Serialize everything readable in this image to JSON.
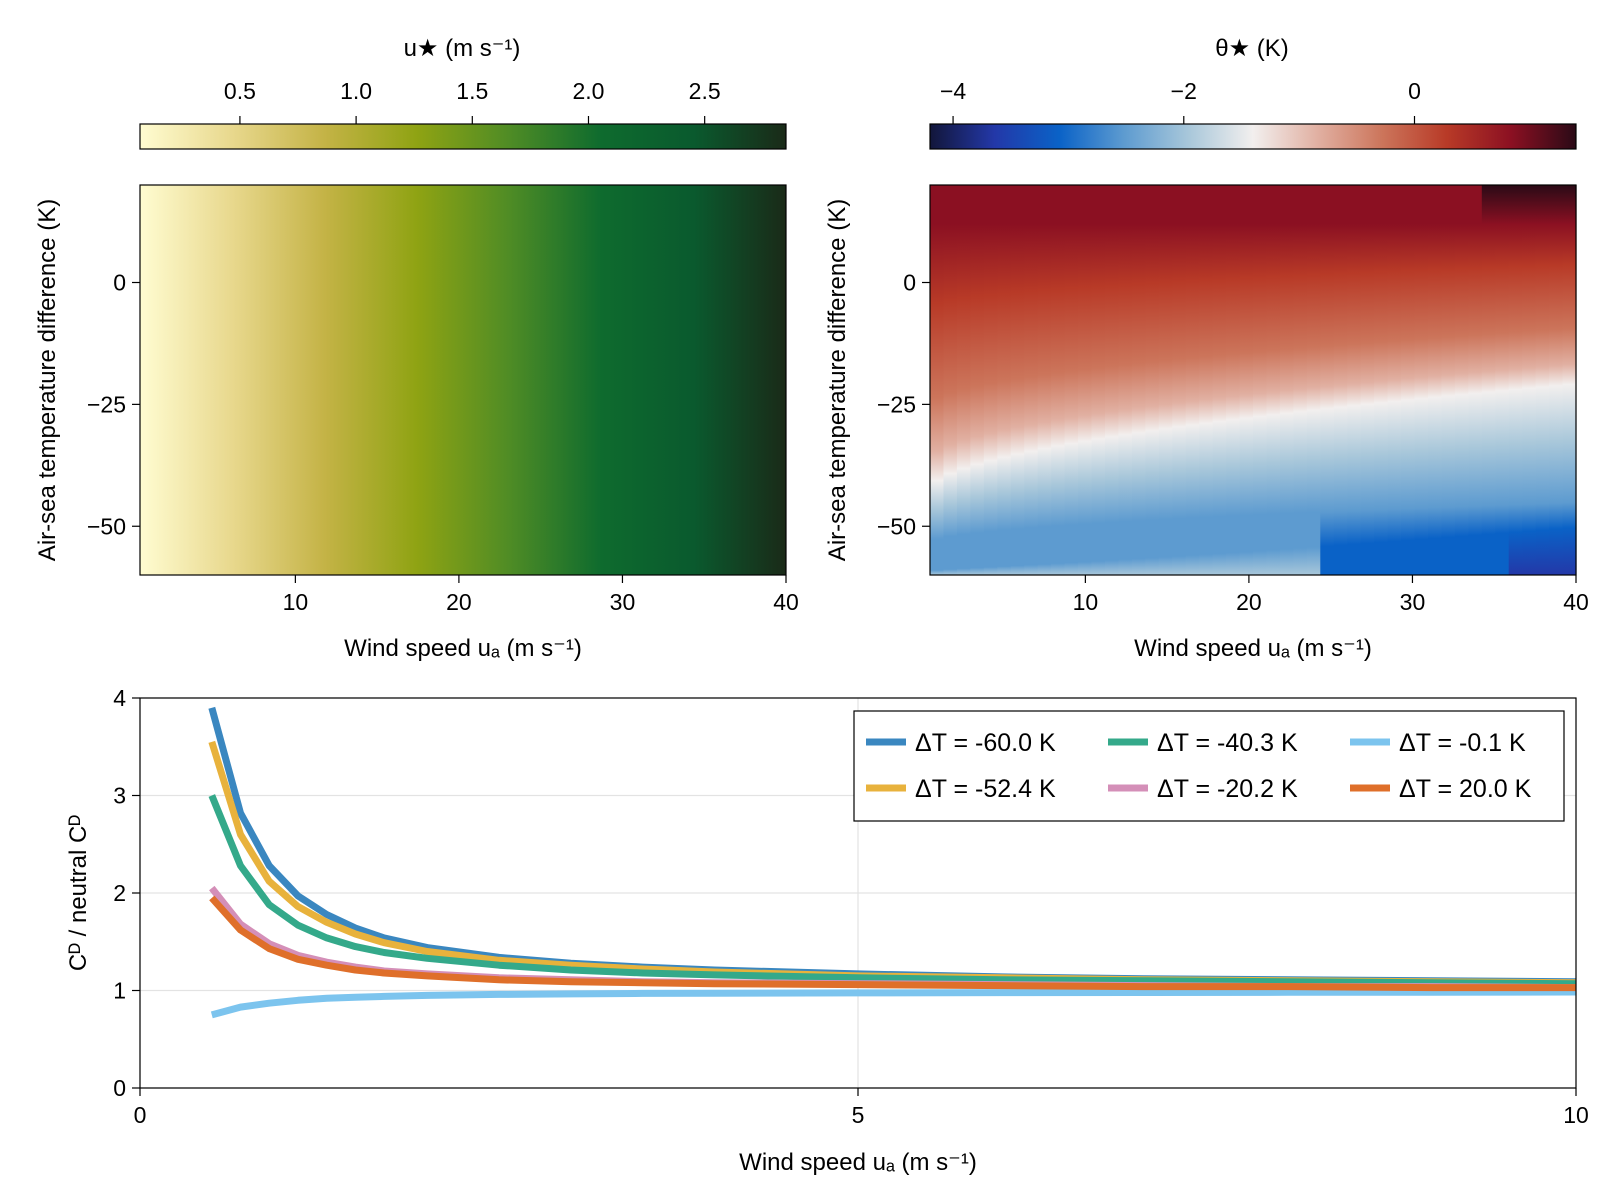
{
  "chart_data": [
    {
      "type": "heatmap",
      "title": "",
      "colorbar_label": "u★ (m s⁻¹)",
      "colorbar_ticks": [
        "0.5",
        "1.0",
        "1.5",
        "2.0",
        "2.5"
      ],
      "colorbar_range": [
        0.07,
        2.85
      ],
      "colors": [
        "#fffcd1",
        "#e8d88d",
        "#c4b346",
        "#8fa313",
        "#4f8c25",
        "#0e6b2e",
        "#0a5a2e",
        "#1a2a18"
      ],
      "xlabel": "Wind speed uₐ (m s⁻¹)",
      "ylabel": "Air-sea temperature difference (K)",
      "xlim": [
        0.5,
        40
      ],
      "ylim": [
        -60,
        20
      ],
      "xticks": [
        "10",
        "20",
        "30",
        "40"
      ],
      "yticks": [
        "0",
        "−25",
        "−50"
      ]
    },
    {
      "type": "heatmap",
      "title": "",
      "colorbar_label": "θ★ (K)",
      "colorbar_ticks": [
        "−4",
        "−2",
        "0"
      ],
      "colorbar_range": [
        -4.2,
        1.4
      ],
      "colors": [
        "#12163a",
        "#2338a8",
        "#0a62c7",
        "#5d9bd0",
        "#a8c7da",
        "#f2efee",
        "#e1b0a2",
        "#cc755b",
        "#b83a27",
        "#8b1022",
        "#2a0a16"
      ],
      "xlabel": "Wind speed uₐ (m s⁻¹)",
      "ylabel": "Air-sea temperature difference (K)",
      "xlim": [
        0.5,
        40
      ],
      "ylim": [
        -60,
        20
      ],
      "xticks": [
        "10",
        "20",
        "30",
        "40"
      ],
      "yticks": [
        "0",
        "−25",
        "−50"
      ]
    },
    {
      "type": "line",
      "title": "",
      "xlabel": "Wind speed uₐ (m s⁻¹)",
      "ylabel": "Cᴰ / neutral Cᴰ",
      "xlim": [
        0,
        10
      ],
      "ylim": [
        0,
        4
      ],
      "xticks": [
        "0",
        "5",
        "10"
      ],
      "yticks": [
        "0",
        "1",
        "2",
        "3",
        "4"
      ],
      "grid": true,
      "legend_position": "top-right",
      "x": [
        0.5,
        0.7,
        0.9,
        1.1,
        1.3,
        1.5,
        1.7,
        2.0,
        2.5,
        3.0,
        3.5,
        4.0,
        5.0,
        6.0,
        7.0,
        8.0,
        9.0,
        10.0
      ],
      "series": [
        {
          "name": "ΔT = -60.0 K",
          "color": "#3a87c0",
          "values": [
            3.9,
            2.82,
            2.28,
            1.97,
            1.78,
            1.64,
            1.54,
            1.44,
            1.34,
            1.28,
            1.24,
            1.21,
            1.17,
            1.14,
            1.12,
            1.11,
            1.1,
            1.09
          ]
        },
        {
          "name": "ΔT = -52.4 K",
          "color": "#e8b23c",
          "values": [
            3.55,
            2.6,
            2.12,
            1.86,
            1.7,
            1.58,
            1.49,
            1.4,
            1.31,
            1.26,
            1.22,
            1.19,
            1.15,
            1.13,
            1.11,
            1.1,
            1.09,
            1.08
          ]
        },
        {
          "name": "ΔT = -40.3 K",
          "color": "#34a98a",
          "values": [
            3.0,
            2.28,
            1.88,
            1.67,
            1.54,
            1.45,
            1.39,
            1.33,
            1.26,
            1.21,
            1.18,
            1.16,
            1.13,
            1.11,
            1.1,
            1.09,
            1.08,
            1.07
          ]
        },
        {
          "name": "ΔT = -20.2 K",
          "color": "#d48fb8",
          "values": [
            2.05,
            1.68,
            1.48,
            1.36,
            1.29,
            1.24,
            1.2,
            1.17,
            1.13,
            1.11,
            1.09,
            1.08,
            1.07,
            1.06,
            1.05,
            1.04,
            1.04,
            1.03
          ]
        },
        {
          "name": "ΔT = -0.1 K",
          "color": "#7cc4ee",
          "values": [
            0.75,
            0.83,
            0.87,
            0.9,
            0.92,
            0.93,
            0.94,
            0.95,
            0.96,
            0.965,
            0.97,
            0.972,
            0.975,
            0.978,
            0.98,
            0.982,
            0.983,
            0.985
          ]
        },
        {
          "name": "ΔT = 20.0 K",
          "color": "#df6f2a",
          "values": [
            1.95,
            1.62,
            1.43,
            1.32,
            1.26,
            1.21,
            1.18,
            1.15,
            1.11,
            1.09,
            1.08,
            1.07,
            1.06,
            1.05,
            1.04,
            1.04,
            1.03,
            1.03
          ]
        }
      ]
    }
  ]
}
